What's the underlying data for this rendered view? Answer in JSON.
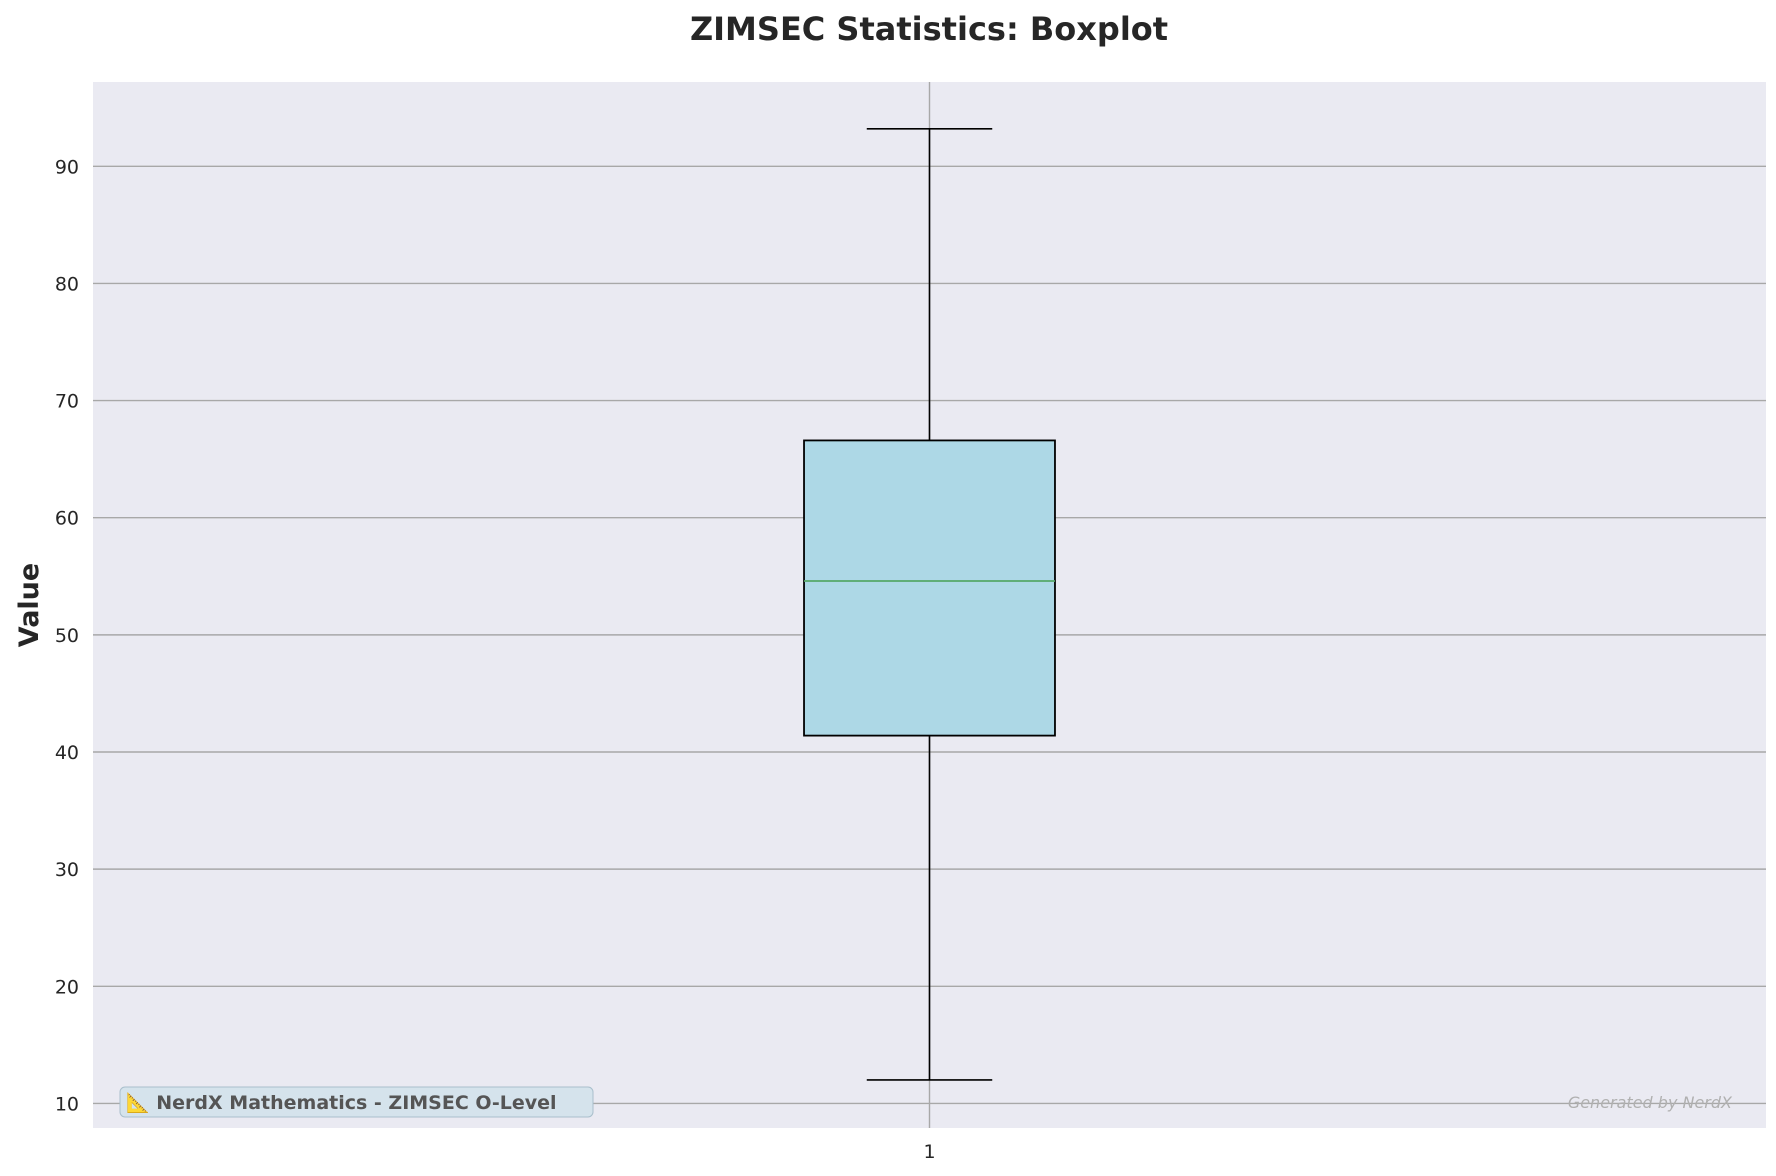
{
  "chart_data": {
    "type": "boxplot",
    "title": "ZIMSEC Statistics: Boxplot",
    "xlabel": "",
    "ylabel": "Value",
    "ylim": [
      7.9,
      97.2
    ],
    "yticks": [
      10,
      20,
      30,
      40,
      50,
      60,
      70,
      80,
      90
    ],
    "categories": [
      "1"
    ],
    "boxes": [
      {
        "category": "1",
        "whisker_low": 12.0,
        "q1": 41.4,
        "median": 54.6,
        "q3": 66.6,
        "whisker_high": 93.2
      }
    ],
    "grid": true,
    "colors": {
      "background": "#eaeaf2",
      "grid": "#a8a8a8",
      "box_fill": "#add8e6",
      "box_edge": "#000000",
      "median": "#55a868",
      "title": "#262626"
    }
  },
  "annotations": {
    "branding": "📐 NerdX Mathematics - ZIMSEC O-Level",
    "branding_icon": "ruler-triangle-icon",
    "watermark": "Generated by NerdX"
  }
}
